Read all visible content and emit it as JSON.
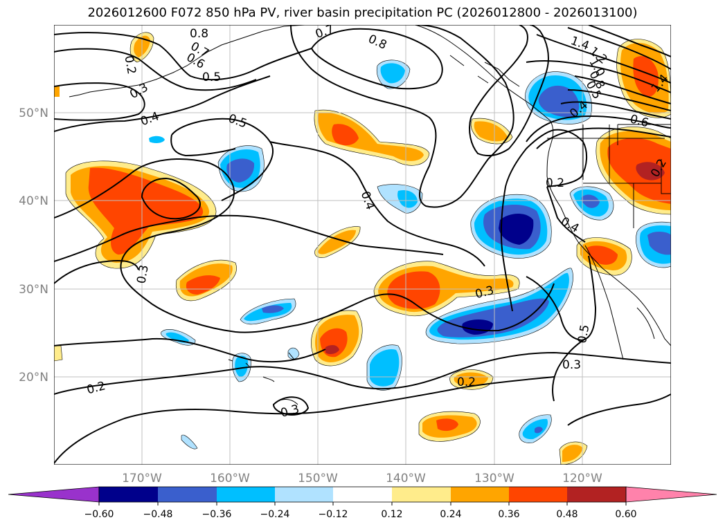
{
  "title": "2026012600 F072 850 hPa PV, river basin precipitation PC (2026012800 - 2026013100)",
  "axes": {
    "lon_ticks": [
      "170°W",
      "160°W",
      "150°W",
      "140°W",
      "130°W",
      "120°W"
    ],
    "lat_ticks": [
      "50°N",
      "40°N",
      "30°N",
      "20°N"
    ]
  },
  "pv_contour_labels": [
    "0.8",
    "0.7",
    "0.6",
    "0.5",
    "0.2",
    "0.3",
    "0.4",
    "0.7",
    "0.8",
    "1.4",
    "1.2",
    "1.0",
    "0.8",
    "0.5",
    "1.4",
    "0.6",
    "0.4",
    "0.5",
    "0.2",
    "0.4",
    "0.4",
    "0.3",
    "0.2",
    "0.5",
    "0.3",
    "0.2",
    "0.2",
    "0.3",
    "0.3"
  ],
  "colorbar": {
    "ticks": [
      "−0.60",
      "−0.48",
      "−0.36",
      "−0.24",
      "−0.12",
      "0.12",
      "0.24",
      "0.36",
      "0.48",
      "0.60"
    ],
    "colors": [
      "#9932cc",
      "#00008b",
      "#3a5fcd",
      "#00bfff",
      "#b0e2ff",
      "#ffffff",
      "#ffec8b",
      "#ffa500",
      "#ff4500",
      "#b22222",
      "#ff82ab"
    ]
  },
  "fill_colors": {
    "neg1": "#b0e2ff",
    "neg2": "#00bfff",
    "neg3": "#3a5fcd",
    "neg4": "#00008b",
    "pos1": "#ffec8b",
    "pos2": "#ffa500",
    "pos3": "#ff4500",
    "pos4": "#b22222"
  }
}
